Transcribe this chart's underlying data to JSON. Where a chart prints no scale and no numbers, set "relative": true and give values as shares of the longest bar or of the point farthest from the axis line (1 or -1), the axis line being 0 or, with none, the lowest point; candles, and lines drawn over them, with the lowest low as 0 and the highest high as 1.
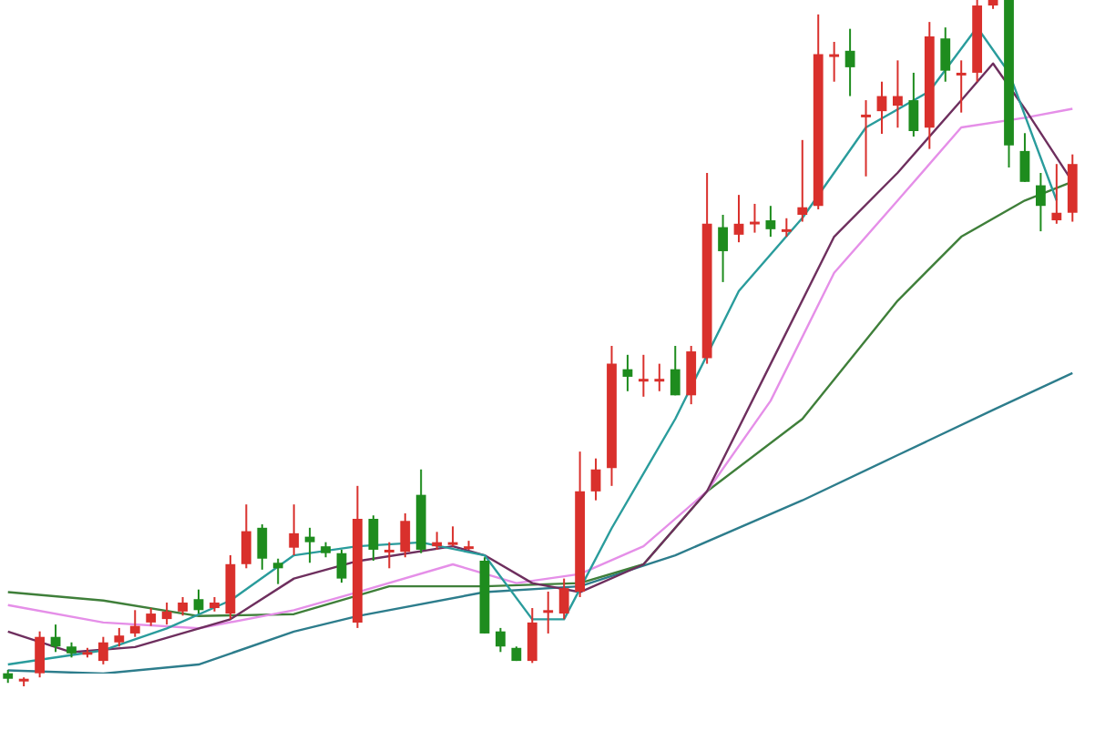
{
  "chart_data": [
    {
      "type": "candlestick",
      "relative": true,
      "categories": [
        null,
        null,
        null,
        null,
        null,
        null,
        null,
        null,
        null,
        null,
        null,
        null,
        null,
        null,
        null,
        null,
        null,
        null,
        null,
        null,
        null,
        null,
        null,
        null,
        null,
        null,
        null,
        null,
        null,
        null,
        null,
        null,
        null,
        null,
        null,
        null,
        null,
        null,
        null,
        null,
        null,
        null,
        null,
        null,
        null,
        null,
        null,
        null,
        null,
        null,
        null,
        null,
        null,
        null,
        null,
        null,
        null,
        null,
        null,
        null,
        null,
        null,
        null,
        null,
        null,
        null,
        null,
        null
      ],
      "ohlc": [
        [
          0.019,
          0.024,
          0.005,
          0.011
        ],
        [
          0.008,
          0.013,
          0,
          0.011
        ],
        [
          0.019,
          0.08,
          0.013,
          0.072
        ],
        [
          0.072,
          0.09,
          0.05,
          0.058
        ],
        [
          0.058,
          0.064,
          0.042,
          0.048
        ],
        [
          0.05,
          0.056,
          0.042,
          0.05
        ],
        [
          0.037,
          0.072,
          0.032,
          0.064
        ],
        [
          0.064,
          0.085,
          0.058,
          0.074
        ],
        [
          0.077,
          0.111,
          0.072,
          0.088
        ],
        [
          0.093,
          0.114,
          0.088,
          0.106
        ],
        [
          0.098,
          0.122,
          0.09,
          0.109
        ],
        [
          0.109,
          0.13,
          0.103,
          0.122
        ],
        [
          0.127,
          0.141,
          0.106,
          0.111
        ],
        [
          0.114,
          0.13,
          0.109,
          0.122
        ],
        [
          0.106,
          0.191,
          0.098,
          0.178
        ],
        [
          0.178,
          0.265,
          0.172,
          0.226
        ],
        [
          0.231,
          0.236,
          0.17,
          0.186
        ],
        [
          0.18,
          0.186,
          0.149,
          0.172
        ],
        [
          0.202,
          0.265,
          0.191,
          0.223
        ],
        [
          0.218,
          0.231,
          0.18,
          0.21
        ],
        [
          0.204,
          0.21,
          0.188,
          0.194
        ],
        [
          0.194,
          0.199,
          0.151,
          0.157
        ],
        [
          0.093,
          0.292,
          0.085,
          0.244
        ],
        [
          0.244,
          0.249,
          0.183,
          0.199
        ],
        [
          0.199,
          0.21,
          0.172,
          0.199
        ],
        [
          0.196,
          0.252,
          0.188,
          0.241
        ],
        [
          0.279,
          0.316,
          0.194,
          0.199
        ],
        [
          0.204,
          0.225,
          0.199,
          0.21
        ],
        [
          0.21,
          0.233,
          0.204,
          0.21
        ],
        [
          0.204,
          0.212,
          0.199,
          0.204
        ],
        [
          0.183,
          0.188,
          0.077,
          0.077
        ],
        [
          0.08,
          0.085,
          0.05,
          0.058
        ],
        [
          0.056,
          0.058,
          0.037,
          0.037
        ],
        [
          0.037,
          0.114,
          0.034,
          0.093
        ],
        [
          0.111,
          0.138,
          0.077,
          0.111
        ],
        [
          0.106,
          0.157,
          0.098,
          0.143
        ],
        [
          0.138,
          0.342,
          0.13,
          0.284
        ],
        [
          0.284,
          0.332,
          0.271,
          0.316
        ],
        [
          0.318,
          0.496,
          0.292,
          0.47
        ],
        [
          0.462,
          0.483,
          0.43,
          0.451
        ],
        [
          0.448,
          0.483,
          0.422,
          0.448
        ],
        [
          0.448,
          0.47,
          0.43,
          0.448
        ],
        [
          0.462,
          0.496,
          0.424,
          0.424
        ],
        [
          0.424,
          0.496,
          0.411,
          0.488
        ],
        [
          0.478,
          0.748,
          0.47,
          0.674
        ],
        [
          0.669,
          0.687,
          0.589,
          0.634
        ],
        [
          0.658,
          0.716,
          0.647,
          0.674
        ],
        [
          0.677,
          0.703,
          0.661,
          0.677
        ],
        [
          0.679,
          0.7,
          0.655,
          0.666
        ],
        [
          0.666,
          0.682,
          0.655,
          0.666
        ],
        [
          0.687,
          0.796,
          0.677,
          0.698
        ],
        [
          0.7,
          0.979,
          0.695,
          0.921
        ],
        [
          0.921,
          0.939,
          0.881,
          0.921
        ],
        [
          0.926,
          0.958,
          0.86,
          0.902
        ],
        [
          0.833,
          0.854,
          0.743,
          0.833
        ],
        [
          0.838,
          0.881,
          0.805,
          0.86
        ],
        [
          0.846,
          0.912,
          0.814,
          0.86
        ],
        [
          0.854,
          0.894,
          0.801,
          0.809
        ],
        [
          0.814,
          0.968,
          0.783,
          0.947
        ],
        [
          0.944,
          0.96,
          0.881,
          0.897
        ],
        [
          0.894,
          0.912,
          0.836,
          0.894
        ],
        [
          0.894,
          1,
          0.881,
          0.992
        ],
        [
          0.992,
          1,
          0.987,
          1
        ],
        [
          1,
          1,
          0.756,
          0.788
        ],
        [
          0.78,
          0.806,
          0.735,
          0.735
        ],
        [
          0.73,
          0.748,
          0.663,
          0.7
        ],
        [
          0.679,
          0.761,
          0.674,
          0.69
        ],
        [
          0.69,
          0.775,
          0.677,
          0.761
        ]
      ]
    },
    {
      "type": "line",
      "relative": true,
      "marker": "none",
      "categories": [
        null,
        null,
        null,
        null,
        null,
        null,
        null,
        null,
        null,
        null,
        null,
        null,
        null,
        null,
        null,
        null,
        null,
        null,
        null,
        null,
        null,
        null,
        null,
        null,
        null,
        null,
        null,
        null,
        null,
        null,
        null,
        null,
        null,
        null,
        null,
        null,
        null,
        null,
        null,
        null,
        null,
        null,
        null,
        null,
        null,
        null,
        null,
        null,
        null,
        null,
        null,
        null,
        null,
        null,
        null,
        null,
        null,
        null,
        null,
        null,
        null,
        null,
        null,
        null,
        null,
        null,
        null,
        null
      ],
      "series": [
        {
          "color": "#2a9c9c",
          "values": [
            0.014,
            null,
            null,
            null,
            null,
            null,
            0.036,
            null,
            null,
            null,
            0.07,
            null,
            null,
            null,
            0.113,
            null,
            null,
            null,
            0.183,
            null,
            null,
            null,
            0.197,
            null,
            null,
            null,
            0.203,
            null,
            null,
            null,
            0.183,
            null,
            null,
            0.084,
            null,
            0.084,
            null,
            null,
            0.225,
            null,
            null,
            null,
            0.394,
            null,
            null,
            null,
            0.592,
            null,
            null,
            null,
            0.705,
            null,
            null,
            null,
            0.845,
            null,
            null,
            null,
            0.901,
            null,
            null,
            1,
            null,
            0.93,
            null,
            null,
            0.732,
            null
          ]
        },
        {
          "color": "#6e2f5e",
          "values": [
            0.065,
            null,
            null,
            null,
            0.033,
            null,
            null,
            null,
            0.041,
            null,
            null,
            null,
            null,
            null,
            0.084,
            null,
            null,
            null,
            0.147,
            null,
            null,
            null,
            0.174,
            null,
            null,
            null,
            null,
            null,
            0.197,
            null,
            0.183,
            null,
            null,
            0.14,
            null,
            null,
            0.126,
            null,
            null,
            null,
            0.169,
            null,
            null,
            null,
            0.282,
            null,
            null,
            null,
            0.479,
            null,
            null,
            null,
            0.676,
            null,
            null,
            null,
            0.775,
            null,
            null,
            null,
            0.887,
            null,
            0.944,
            null,
            0.874,
            null,
            null,
            0.761
          ]
        },
        {
          "color": "#e58fe8",
          "values": [
            0.106,
            null,
            null,
            null,
            null,
            null,
            0.079,
            null,
            null,
            null,
            null,
            null,
            0.07,
            null,
            null,
            null,
            null,
            null,
            0.098,
            null,
            null,
            null,
            0.126,
            null,
            null,
            null,
            null,
            null,
            0.169,
            null,
            null,
            null,
            0.14,
            null,
            null,
            null,
            0.154,
            null,
            null,
            null,
            0.197,
            null,
            null,
            null,
            0.282,
            null,
            null,
            null,
            0.422,
            null,
            null,
            null,
            0.62,
            null,
            null,
            null,
            0.732,
            null,
            null,
            null,
            0.845,
            null,
            null,
            null,
            0.86,
            null,
            null,
            0.874
          ]
        },
        {
          "color": "#3f7f3a",
          "values": [
            0.126,
            null,
            null,
            null,
            null,
            null,
            0.113,
            null,
            null,
            null,
            null,
            null,
            0.089,
            null,
            null,
            null,
            null,
            null,
            0.092,
            null,
            null,
            null,
            null,
            null,
            0.135,
            null,
            null,
            null,
            null,
            null,
            0.135,
            null,
            null,
            null,
            null,
            null,
            0.14,
            null,
            null,
            null,
            0.169,
            null,
            null,
            null,
            0.282,
            null,
            null,
            null,
            null,
            null,
            0.394,
            null,
            null,
            null,
            null,
            null,
            0.577,
            null,
            null,
            null,
            0.676,
            null,
            null,
            null,
            0.732,
            null,
            null,
            0.761
          ]
        },
        {
          "color": "#2d7d8c",
          "values": [
            0.005,
            null,
            null,
            null,
            null,
            null,
            0,
            null,
            null,
            null,
            null,
            null,
            0.014,
            null,
            null,
            null,
            null,
            null,
            0.065,
            null,
            null,
            null,
            0.089,
            null,
            null,
            null,
            null,
            null,
            null,
            null,
            0.126,
            null,
            null,
            null,
            null,
            null,
            0.135,
            null,
            null,
            null,
            null,
            null,
            0.183,
            null,
            null,
            null,
            null,
            null,
            null,
            null,
            0.268,
            null,
            null,
            null,
            null,
            null,
            0.338,
            null,
            null,
            null,
            null,
            null,
            0.408,
            null,
            null,
            null,
            null,
            0.465
          ]
        }
      ]
    }
  ]
}
